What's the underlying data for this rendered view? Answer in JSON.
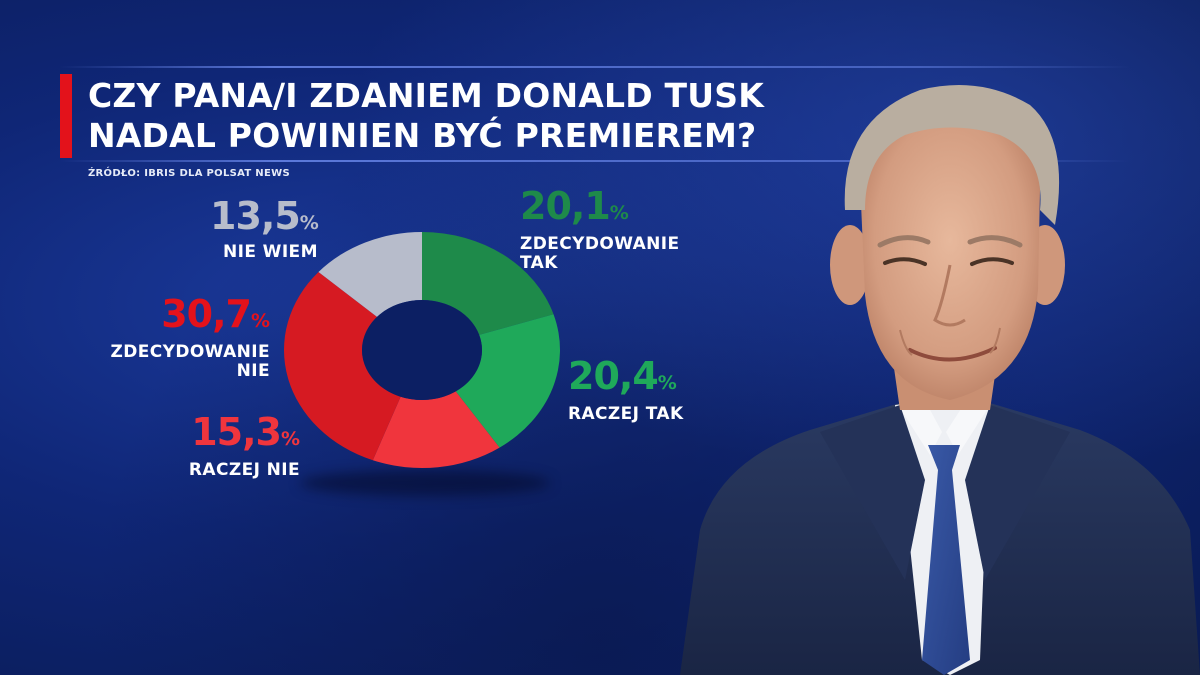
{
  "title": {
    "line1": "CZY PANA/I ZDANIEM DONALD TUSK",
    "line2": "NADAL POWINIEN BYĆ PREMIEREM?"
  },
  "source": "ŹRÓDŁO: IBRIS DLA POLSAT NEWS",
  "colors": {
    "zdecydowanie_tak": "#1e8a4a",
    "raczej_tak": "#1fa95a",
    "raczej_nie": "#f0353d",
    "zdecydowanie_nie": "#d61a22",
    "nie_wiem": "#b7bccb",
    "title_accent": "#e3121b"
  },
  "chart_data": {
    "type": "pie",
    "donut": true,
    "slices": [
      {
        "key": "zdecydowanie_tak",
        "value": 20.1,
        "value_text": "20,1",
        "label_lines": [
          "ZDECYDOWANIE",
          "TAK"
        ]
      },
      {
        "key": "raczej_tak",
        "value": 20.4,
        "value_text": "20,4",
        "label_lines": [
          "RACZEJ TAK"
        ]
      },
      {
        "key": "raczej_nie",
        "value": 15.3,
        "value_text": "15,3",
        "label_lines": [
          "RACZEJ NIE"
        ]
      },
      {
        "key": "zdecydowanie_nie",
        "value": 30.7,
        "value_text": "30,7",
        "label_lines": [
          "ZDECYDOWANIE",
          "NIE"
        ]
      },
      {
        "key": "nie_wiem",
        "value": 13.5,
        "value_text": "13,5",
        "label_lines": [
          "NIE WIEM"
        ]
      }
    ],
    "percent_sign": "%"
  }
}
